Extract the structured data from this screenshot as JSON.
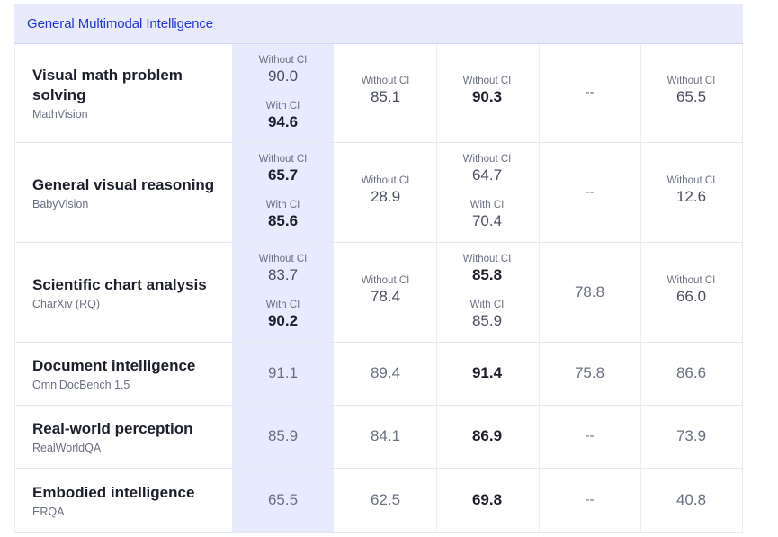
{
  "section_title": "General Multimodal Intelligence",
  "labels": {
    "without_ci": "Without CI",
    "with_ci": "With CI",
    "na": "--"
  },
  "rows": [
    {
      "name": "Visual math problem solving",
      "name_lines": [
        "Visual math problem",
        "solving"
      ],
      "benchmark": "MathVision",
      "cells": [
        {
          "without": "90.0",
          "with": "94.6",
          "bold": "with"
        },
        {
          "without": "85.1"
        },
        {
          "without": "90.3",
          "bold": "without"
        },
        {
          "na": true
        },
        {
          "without": "65.5"
        }
      ]
    },
    {
      "name": "General visual reasoning",
      "benchmark": "BabyVision",
      "cells": [
        {
          "without": "65.7",
          "with": "85.6",
          "bold": "both"
        },
        {
          "without": "28.9"
        },
        {
          "without": "64.7",
          "with": "70.4"
        },
        {
          "na": true
        },
        {
          "without": "12.6"
        }
      ]
    },
    {
      "name": "Scientific chart analysis",
      "benchmark": "CharXiv (RQ)",
      "cells": [
        {
          "without": "83.7",
          "with": "90.2",
          "bold": "with"
        },
        {
          "without": "78.4"
        },
        {
          "without": "85.8",
          "with": "85.9",
          "bold": "without"
        },
        {
          "value": "78.8"
        },
        {
          "without": "66.0"
        }
      ]
    },
    {
      "name": "Document intelligence",
      "benchmark": "OmniDocBench 1.5",
      "cells": [
        {
          "value": "91.1"
        },
        {
          "value": "89.4"
        },
        {
          "value": "91.4",
          "bold": true
        },
        {
          "value": "75.8"
        },
        {
          "value": "86.6"
        }
      ]
    },
    {
      "name": "Real-world perception",
      "benchmark": "RealWorldQA",
      "cells": [
        {
          "value": "85.9"
        },
        {
          "value": "84.1"
        },
        {
          "value": "86.9",
          "bold": true
        },
        {
          "na": true
        },
        {
          "value": "73.9"
        }
      ]
    },
    {
      "name": "Embodied intelligence",
      "benchmark": "ERQA",
      "cells": [
        {
          "value": "65.5"
        },
        {
          "value": "62.5"
        },
        {
          "value": "69.8",
          "bold": true
        },
        {
          "na": true
        },
        {
          "value": "40.8"
        }
      ]
    }
  ]
}
